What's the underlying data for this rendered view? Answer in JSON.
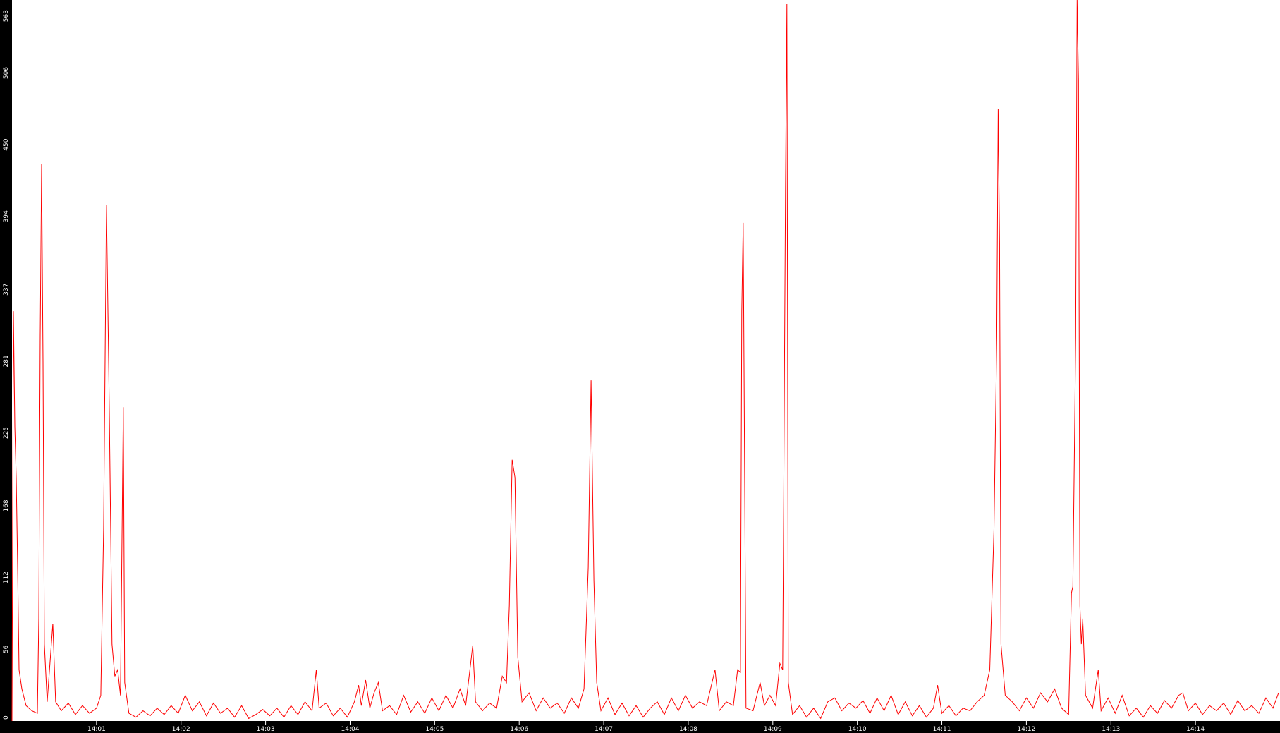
{
  "chart_data": {
    "type": "line",
    "title": "",
    "xlabel": "",
    "ylabel": "",
    "xlim": [
      "14:00:00",
      "14:15:00"
    ],
    "ylim": [
      0,
      563
    ],
    "y_ticks": [
      "0",
      "56",
      "112",
      "168",
      "225",
      "281",
      "337",
      "394",
      "450",
      "506",
      "563"
    ],
    "x_ticks": [
      "14:01",
      "14:02",
      "14:03",
      "14:04",
      "14:05",
      "14:06",
      "14:07",
      "14:08",
      "14:09",
      "14:10",
      "14:11",
      "14:12",
      "14:13",
      "14:14"
    ],
    "grid": false,
    "colors": {
      "background": "#000000",
      "plot_area": "#ffffff",
      "series": "#ff0000",
      "axis_text": "#ffffff"
    },
    "series": [
      {
        "points": [
          [
            "14:00:00",
            0
          ],
          [
            "14:00:01",
            320
          ],
          [
            "14:00:02",
            230
          ],
          [
            "14:00:03",
            190
          ],
          [
            "14:00:04",
            120
          ],
          [
            "14:00:05",
            40
          ],
          [
            "14:00:07",
            25
          ],
          [
            "14:00:10",
            12
          ],
          [
            "14:00:14",
            8
          ],
          [
            "14:00:18",
            6
          ],
          [
            "14:00:19",
            80
          ],
          [
            "14:00:20",
            300
          ],
          [
            "14:00:21",
            435
          ],
          [
            "14:00:22",
            280
          ],
          [
            "14:00:23",
            60
          ],
          [
            "14:00:25",
            15
          ],
          [
            "14:00:29",
            76
          ],
          [
            "14:00:31",
            15
          ],
          [
            "14:00:35",
            8
          ],
          [
            "14:00:40",
            14
          ],
          [
            "14:00:45",
            5
          ],
          [
            "14:00:50",
            12
          ],
          [
            "14:00:55",
            6
          ],
          [
            "14:01:00",
            10
          ],
          [
            "14:01:03",
            20
          ],
          [
            "14:01:05",
            150
          ],
          [
            "14:01:07",
            403
          ],
          [
            "14:01:09",
            250
          ],
          [
            "14:01:11",
            60
          ],
          [
            "14:01:13",
            35
          ],
          [
            "14:01:15",
            40
          ],
          [
            "14:01:17",
            20
          ],
          [
            "14:01:19",
            245
          ],
          [
            "14:01:20",
            30
          ],
          [
            "14:01:23",
            6
          ],
          [
            "14:01:28",
            3
          ],
          [
            "14:01:33",
            8
          ],
          [
            "14:01:38",
            4
          ],
          [
            "14:01:43",
            10
          ],
          [
            "14:01:48",
            5
          ],
          [
            "14:01:53",
            12
          ],
          [
            "14:01:58",
            6
          ],
          [
            "14:02:03",
            20
          ],
          [
            "14:02:08",
            8
          ],
          [
            "14:02:13",
            15
          ],
          [
            "14:02:18",
            4
          ],
          [
            "14:02:23",
            14
          ],
          [
            "14:02:28",
            6
          ],
          [
            "14:02:33",
            10
          ],
          [
            "14:02:38",
            3
          ],
          [
            "14:02:43",
            12
          ],
          [
            "14:02:48",
            2
          ],
          [
            "14:02:53",
            5
          ],
          [
            "14:02:58",
            9
          ],
          [
            "14:03:03",
            4
          ],
          [
            "14:03:08",
            10
          ],
          [
            "14:03:13",
            3
          ],
          [
            "14:03:18",
            12
          ],
          [
            "14:03:23",
            5
          ],
          [
            "14:03:28",
            15
          ],
          [
            "14:03:33",
            8
          ],
          [
            "14:03:36",
            40
          ],
          [
            "14:03:38",
            10
          ],
          [
            "14:03:43",
            14
          ],
          [
            "14:03:48",
            4
          ],
          [
            "14:03:53",
            10
          ],
          [
            "14:03:58",
            3
          ],
          [
            "14:04:03",
            15
          ],
          [
            "14:04:06",
            28
          ],
          [
            "14:04:08",
            12
          ],
          [
            "14:04:11",
            32
          ],
          [
            "14:04:14",
            10
          ],
          [
            "14:04:17",
            22
          ],
          [
            "14:04:20",
            30
          ],
          [
            "14:04:23",
            8
          ],
          [
            "14:04:28",
            12
          ],
          [
            "14:04:33",
            5
          ],
          [
            "14:04:38",
            20
          ],
          [
            "14:04:43",
            7
          ],
          [
            "14:04:48",
            15
          ],
          [
            "14:04:53",
            6
          ],
          [
            "14:04:58",
            18
          ],
          [
            "14:05:03",
            8
          ],
          [
            "14:05:08",
            20
          ],
          [
            "14:05:13",
            10
          ],
          [
            "14:05:18",
            25
          ],
          [
            "14:05:22",
            12
          ],
          [
            "14:05:25",
            40
          ],
          [
            "14:05:27",
            59
          ],
          [
            "14:05:29",
            15
          ],
          [
            "14:05:34",
            8
          ],
          [
            "14:05:39",
            14
          ],
          [
            "14:05:44",
            10
          ],
          [
            "14:05:48",
            35
          ],
          [
            "14:05:51",
            30
          ],
          [
            "14:05:53",
            90
          ],
          [
            "14:05:55",
            204
          ],
          [
            "14:05:57",
            190
          ],
          [
            "14:05:59",
            50
          ],
          [
            "14:06:02",
            15
          ],
          [
            "14:06:07",
            22
          ],
          [
            "14:06:12",
            8
          ],
          [
            "14:06:17",
            18
          ],
          [
            "14:06:22",
            10
          ],
          [
            "14:06:27",
            14
          ],
          [
            "14:06:32",
            6
          ],
          [
            "14:06:37",
            18
          ],
          [
            "14:06:42",
            10
          ],
          [
            "14:06:46",
            25
          ],
          [
            "14:06:49",
            120
          ],
          [
            "14:06:51",
            266
          ],
          [
            "14:06:53",
            110
          ],
          [
            "14:06:55",
            30
          ],
          [
            "14:06:58",
            8
          ],
          [
            "14:07:03",
            18
          ],
          [
            "14:07:08",
            5
          ],
          [
            "14:07:13",
            14
          ],
          [
            "14:07:18",
            4
          ],
          [
            "14:07:23",
            12
          ],
          [
            "14:07:28",
            3
          ],
          [
            "14:07:33",
            10
          ],
          [
            "14:07:38",
            15
          ],
          [
            "14:07:43",
            5
          ],
          [
            "14:07:48",
            18
          ],
          [
            "14:07:53",
            8
          ],
          [
            "14:07:58",
            20
          ],
          [
            "14:08:03",
            10
          ],
          [
            "14:08:08",
            15
          ],
          [
            "14:08:13",
            12
          ],
          [
            "14:08:19",
            40
          ],
          [
            "14:08:22",
            8
          ],
          [
            "14:08:27",
            15
          ],
          [
            "14:08:32",
            12
          ],
          [
            "14:08:35",
            40
          ],
          [
            "14:08:37",
            38
          ],
          [
            "14:08:38",
            320
          ],
          [
            "14:08:39",
            389
          ],
          [
            "14:08:40",
            200
          ],
          [
            "14:08:41",
            10
          ],
          [
            "14:08:46",
            8
          ],
          [
            "14:08:51",
            30
          ],
          [
            "14:08:54",
            12
          ],
          [
            "14:08:58",
            20
          ],
          [
            "14:09:02",
            12
          ],
          [
            "14:09:05",
            45
          ],
          [
            "14:09:07",
            40
          ],
          [
            "14:09:08",
            220
          ],
          [
            "14:09:09",
            415
          ],
          [
            "14:09:10",
            560
          ],
          [
            "14:09:11",
            30
          ],
          [
            "14:09:14",
            5
          ],
          [
            "14:09:19",
            12
          ],
          [
            "14:09:24",
            3
          ],
          [
            "14:09:29",
            10
          ],
          [
            "14:09:34",
            2
          ],
          [
            "14:09:39",
            15
          ],
          [
            "14:09:44",
            18
          ],
          [
            "14:09:49",
            8
          ],
          [
            "14:09:54",
            14
          ],
          [
            "14:09:59",
            10
          ],
          [
            "14:10:04",
            16
          ],
          [
            "14:10:09",
            6
          ],
          [
            "14:10:14",
            18
          ],
          [
            "14:10:19",
            8
          ],
          [
            "14:10:24",
            20
          ],
          [
            "14:10:29",
            5
          ],
          [
            "14:10:34",
            15
          ],
          [
            "14:10:39",
            4
          ],
          [
            "14:10:44",
            12
          ],
          [
            "14:10:49",
            3
          ],
          [
            "14:10:54",
            10
          ],
          [
            "14:10:57",
            28
          ],
          [
            "14:11:00",
            6
          ],
          [
            "14:11:05",
            12
          ],
          [
            "14:11:10",
            4
          ],
          [
            "14:11:15",
            10
          ],
          [
            "14:11:20",
            8
          ],
          [
            "14:11:25",
            15
          ],
          [
            "14:11:30",
            20
          ],
          [
            "14:11:34",
            40
          ],
          [
            "14:11:37",
            150
          ],
          [
            "14:11:39",
            300
          ],
          [
            "14:11:40",
            478
          ],
          [
            "14:11:41",
            373
          ],
          [
            "14:11:42",
            60
          ],
          [
            "14:11:45",
            20
          ],
          [
            "14:11:50",
            15
          ],
          [
            "14:11:55",
            8
          ],
          [
            "14:12:00",
            18
          ],
          [
            "14:12:05",
            10
          ],
          [
            "14:12:10",
            22
          ],
          [
            "14:12:15",
            15
          ],
          [
            "14:12:20",
            25
          ],
          [
            "14:12:25",
            10
          ],
          [
            "14:12:30",
            5
          ],
          [
            "14:12:32",
            100
          ],
          [
            "14:12:33",
            105
          ],
          [
            "14:12:35",
            300
          ],
          [
            "14:12:36",
            563
          ],
          [
            "14:12:37",
            500
          ],
          [
            "14:12:38",
            90
          ],
          [
            "14:12:39",
            60
          ],
          [
            "14:12:40",
            80
          ],
          [
            "14:12:42",
            20
          ],
          [
            "14:12:47",
            10
          ],
          [
            "14:12:51",
            40
          ],
          [
            "14:12:53",
            8
          ],
          [
            "14:12:58",
            18
          ],
          [
            "14:13:03",
            6
          ],
          [
            "14:13:08",
            20
          ],
          [
            "14:13:13",
            4
          ],
          [
            "14:13:18",
            10
          ],
          [
            "14:13:23",
            3
          ],
          [
            "14:13:28",
            12
          ],
          [
            "14:13:33",
            6
          ],
          [
            "14:13:38",
            16
          ],
          [
            "14:13:43",
            10
          ],
          [
            "14:13:48",
            20
          ],
          [
            "14:13:51",
            22
          ],
          [
            "14:13:55",
            8
          ],
          [
            "14:14:00",
            14
          ],
          [
            "14:14:05",
            5
          ],
          [
            "14:14:10",
            12
          ],
          [
            "14:14:15",
            8
          ],
          [
            "14:14:20",
            14
          ],
          [
            "14:14:25",
            5
          ],
          [
            "14:14:30",
            16
          ],
          [
            "14:14:35",
            8
          ],
          [
            "14:14:40",
            12
          ],
          [
            "14:14:45",
            6
          ],
          [
            "14:14:50",
            18
          ],
          [
            "14:14:55",
            10
          ],
          [
            "14:14:59",
            22
          ]
        ]
      }
    ]
  }
}
